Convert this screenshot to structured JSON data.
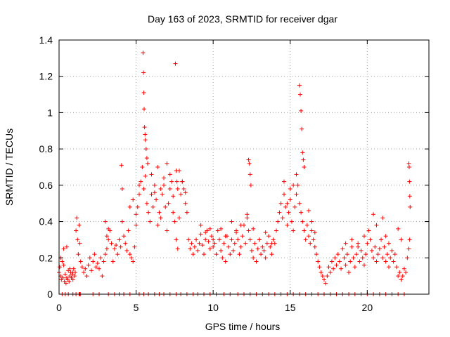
{
  "chart_data": {
    "type": "scatter",
    "title": "Day 163 of 2023, SRMTID for receiver dgar",
    "xlabel": "GPS time / hours",
    "ylabel": "SRMTID / TECUs",
    "xlim": [
      0,
      24
    ],
    "ylim": [
      0,
      1.4
    ],
    "xticks": [
      0,
      5,
      10,
      15,
      20
    ],
    "xtick_labels": [
      "0",
      "5",
      "10",
      "15",
      "20"
    ],
    "yticks": [
      0,
      0.2,
      0.4,
      0.6,
      0.8,
      1.0,
      1.2,
      1.4
    ],
    "ytick_labels": [
      "0",
      "0.2",
      "0.4",
      "0.6",
      "0.8",
      "1",
      "1.2",
      "1.4"
    ],
    "grid": true,
    "marker": "+",
    "series": [
      {
        "name": "SRMTID",
        "color": "#ff0000",
        "x": [
          0.0,
          0.05,
          0.1,
          0.15,
          0.2,
          0.25,
          0.3,
          0.35,
          0.4,
          0.45,
          0.5,
          0.55,
          0.6,
          0.65,
          0.7,
          0.75,
          0.8,
          0.85,
          0.9,
          0.95,
          1.0,
          1.05,
          1.1,
          1.15,
          1.2,
          1.25,
          1.3,
          1.35,
          1.4,
          1.5,
          1.6,
          1.7,
          1.8,
          1.9,
          2.0,
          2.1,
          2.2,
          2.3,
          2.4,
          2.5,
          2.6,
          2.7,
          2.8,
          2.9,
          3.0,
          3.1,
          3.2,
          3.3,
          3.4,
          3.5,
          3.6,
          3.7,
          3.8,
          3.9,
          4.0,
          4.1,
          4.2,
          4.3,
          4.4,
          4.5,
          4.6,
          4.7,
          4.8,
          4.9,
          5.0,
          5.1,
          5.2,
          5.3,
          5.4,
          5.5,
          5.6,
          5.7,
          5.8,
          5.9,
          6.0,
          6.1,
          6.2,
          6.3,
          6.4,
          6.5,
          6.6,
          6.7,
          6.8,
          6.9,
          7.0,
          7.1,
          7.2,
          7.3,
          7.4,
          7.5,
          7.6,
          7.7,
          7.8,
          7.9,
          8.0,
          8.1,
          8.2,
          8.3,
          8.4,
          8.5,
          8.6,
          8.7,
          8.8,
          8.9,
          9.0,
          9.1,
          9.2,
          9.3,
          9.4,
          9.5,
          9.6,
          9.7,
          9.8,
          9.9,
          10.0,
          10.1,
          10.2,
          10.3,
          10.4,
          10.5,
          10.6,
          10.7,
          10.8,
          10.9,
          11.0,
          11.1,
          11.2,
          11.3,
          11.4,
          11.5,
          11.6,
          11.7,
          11.8,
          11.9,
          12.0,
          12.1,
          12.2,
          12.3,
          12.4,
          12.5,
          12.6,
          12.7,
          12.8,
          12.9,
          13.0,
          13.1,
          13.2,
          13.3,
          13.4,
          13.5,
          13.6,
          13.7,
          13.8,
          13.9,
          14.0,
          14.1,
          14.2,
          14.3,
          14.4,
          14.5,
          14.6,
          14.7,
          14.8,
          14.9,
          15.0,
          15.1,
          15.2,
          15.3,
          15.4,
          15.5,
          15.6,
          15.7,
          15.8,
          15.9,
          16.0,
          16.1,
          16.2,
          16.3,
          16.4,
          16.5,
          16.6,
          16.7,
          16.8,
          16.9,
          17.0,
          17.1,
          17.2,
          17.3,
          17.4,
          17.5,
          17.6,
          17.7,
          17.8,
          17.9,
          18.0,
          18.1,
          18.2,
          18.3,
          18.4,
          18.5,
          18.6,
          18.7,
          18.8,
          18.9,
          19.0,
          19.1,
          19.2,
          19.3,
          19.4,
          19.5,
          19.6,
          19.7,
          19.8,
          19.9,
          20.0,
          20.1,
          20.2,
          20.3,
          20.4,
          20.5,
          20.6,
          20.7,
          20.8,
          20.9,
          21.0,
          21.1,
          21.2,
          21.3,
          21.4,
          21.5,
          21.6,
          21.7,
          21.8,
          21.9,
          22.0,
          22.1,
          22.2,
          22.3,
          22.4,
          22.5,
          22.6,
          22.7,
          22.75,
          0.2,
          0.4,
          0.6,
          0.9,
          1.1,
          1.3,
          1.35,
          1.38,
          2.2,
          2.6,
          3.2,
          3.6,
          3.9,
          4.2,
          4.6,
          5.2,
          5.5,
          5.8,
          6.2,
          6.5,
          6.8,
          7.2,
          7.6,
          7.9,
          8.3,
          8.7,
          9.0,
          9.4,
          9.8,
          10.2,
          10.7,
          11.1,
          11.6,
          12.0,
          12.4,
          12.8,
          13.2,
          13.6,
          14.0,
          14.4,
          14.8,
          15.2,
          15.6,
          16.0,
          16.4,
          16.8,
          17.2,
          17.6,
          18.0,
          18.4,
          18.8,
          19.2,
          19.6,
          20.0,
          20.4,
          20.8,
          21.2,
          21.6,
          22.0,
          22.4,
          5.45,
          5.48,
          5.5,
          5.52,
          5.55,
          5.58,
          5.6,
          5.65,
          5.7,
          5.75,
          7.55,
          7.6,
          7.65,
          7.7,
          4.05,
          4.1,
          12.3,
          12.35,
          12.4,
          12.45,
          15.6,
          15.65,
          15.7,
          15.75,
          15.8,
          15.85,
          15.9,
          22.7,
          22.72,
          22.74,
          22.76,
          22.78,
          3.0,
          3.1,
          3.2,
          4.6,
          4.8,
          5.0,
          5.2,
          6.0,
          6.2,
          6.4,
          6.6,
          6.8,
          7.0,
          7.2,
          7.4,
          7.8,
          8.0,
          8.2,
          14.6,
          14.8,
          15.0,
          15.2,
          15.4,
          16.2,
          16.4,
          16.6,
          20.4,
          20.6,
          21.0,
          21.2,
          21.4,
          22.0,
          22.2,
          0.1,
          0.3,
          0.5,
          0.7,
          0.9,
          10.5,
          10.8,
          11.2,
          11.5,
          11.8,
          12.2,
          12.6,
          13.0,
          13.4,
          13.8,
          9.2,
          9.5,
          9.8,
          10.0,
          18.6,
          19.0,
          19.4,
          19.8
        ],
        "y": [
          0.12,
          0.15,
          0.1,
          0.08,
          0.18,
          0.09,
          0.25,
          0.07,
          0.11,
          0.06,
          0.09,
          0.08,
          0.13,
          0.07,
          0.1,
          0.12,
          0.09,
          0.11,
          0.08,
          0.14,
          0.1,
          0.12,
          0.35,
          0.42,
          0.3,
          0.22,
          0.38,
          0.28,
          0.18,
          0.15,
          0.12,
          0.14,
          0.1,
          0.16,
          0.2,
          0.13,
          0.18,
          0.22,
          0.15,
          0.17,
          0.14,
          0.2,
          0.1,
          0.18,
          0.22,
          0.25,
          0.3,
          0.35,
          0.28,
          0.18,
          0.25,
          0.27,
          0.22,
          0.3,
          0.26,
          0.4,
          0.32,
          0.28,
          0.24,
          0.35,
          0.22,
          0.2,
          0.18,
          0.26,
          0.38,
          0.48,
          0.55,
          0.62,
          0.7,
          0.58,
          0.65,
          0.5,
          0.45,
          0.4,
          0.55,
          0.48,
          0.6,
          0.52,
          0.38,
          0.45,
          0.42,
          0.55,
          0.6,
          0.48,
          0.35,
          0.5,
          0.58,
          0.62,
          0.45,
          0.4,
          0.3,
          0.25,
          0.42,
          0.55,
          0.62,
          0.58,
          0.5,
          0.45,
          0.3,
          0.25,
          0.28,
          0.22,
          0.26,
          0.3,
          0.24,
          0.28,
          0.33,
          0.27,
          0.22,
          0.3,
          0.35,
          0.29,
          0.25,
          0.32,
          0.26,
          0.28,
          0.22,
          0.35,
          0.3,
          0.24,
          0.2,
          0.28,
          0.18,
          0.32,
          0.26,
          0.22,
          0.3,
          0.24,
          0.28,
          0.35,
          0.3,
          0.22,
          0.26,
          0.32,
          0.38,
          0.28,
          0.42,
          0.35,
          0.3,
          0.24,
          0.2,
          0.28,
          0.18,
          0.25,
          0.3,
          0.22,
          0.26,
          0.24,
          0.2,
          0.28,
          0.32,
          0.26,
          0.22,
          0.3,
          0.28,
          0.35,
          0.4,
          0.45,
          0.5,
          0.42,
          0.55,
          0.48,
          0.38,
          0.45,
          0.52,
          0.4,
          0.35,
          0.48,
          0.55,
          0.6,
          0.5,
          0.45,
          0.4,
          0.35,
          0.3,
          0.38,
          0.32,
          0.28,
          0.35,
          0.3,
          0.26,
          0.22,
          0.18,
          0.15,
          0.12,
          0.1,
          0.08,
          0.06,
          0.1,
          0.15,
          0.12,
          0.18,
          0.14,
          0.2,
          0.16,
          0.22,
          0.18,
          0.14,
          0.25,
          0.2,
          0.16,
          0.22,
          0.12,
          0.18,
          0.26,
          0.2,
          0.15,
          0.22,
          0.28,
          0.18,
          0.24,
          0.2,
          0.16,
          0.22,
          0.28,
          0.35,
          0.3,
          0.24,
          0.2,
          0.26,
          0.18,
          0.22,
          0.25,
          0.3,
          0.2,
          0.26,
          0.18,
          0.22,
          0.15,
          0.2,
          0.24,
          0.18,
          0.22,
          0.15,
          0.1,
          0.12,
          0.08,
          0.1,
          0.14,
          0.12,
          0.2,
          0.25,
          0.3,
          0.0,
          0.0,
          0.0,
          0.0,
          0.0,
          0.0,
          0.0,
          0.0,
          0.0,
          0.0,
          0.0,
          0.0,
          0.0,
          0.0,
          0.0,
          0.0,
          0.0,
          0.0,
          0.0,
          0.0,
          0.0,
          0.0,
          0.0,
          0.0,
          0.0,
          0.0,
          0.0,
          0.0,
          0.0,
          0.0,
          0.0,
          0.0,
          0.0,
          0.0,
          0.0,
          0.0,
          0.0,
          0.0,
          0.0,
          0.0,
          0.0,
          0.0,
          0.0,
          0.0,
          0.0,
          0.0,
          0.0,
          0.0,
          0.0,
          0.0,
          0.0,
          0.0,
          0.0,
          0.0,
          0.0,
          0.0,
          0.0,
          0.0,
          0.0,
          0.0,
          1.33,
          1.22,
          1.11,
          1.02,
          0.92,
          0.88,
          0.85,
          0.8,
          0.75,
          0.72,
          1.27,
          0.68,
          0.62,
          0.58,
          0.71,
          0.58,
          0.74,
          0.72,
          0.66,
          0.6,
          1.15,
          1.1,
          1.01,
          0.91,
          0.78,
          0.74,
          0.7,
          0.72,
          0.7,
          0.62,
          0.54,
          0.48,
          0.4,
          0.32,
          0.36,
          0.48,
          0.52,
          0.44,
          0.6,
          0.66,
          0.56,
          0.7,
          0.58,
          0.64,
          0.72,
          0.66,
          0.54,
          0.68,
          0.62,
          0.56,
          0.62,
          0.5,
          0.58,
          0.6,
          0.66,
          0.46,
          0.4,
          0.34,
          0.44,
          0.38,
          0.42,
          0.32,
          0.28,
          0.36,
          0.3,
          0.2,
          0.16,
          0.26,
          0.14,
          0.12,
          0.36,
          0.32,
          0.4,
          0.34,
          0.38,
          0.44,
          0.36,
          0.3,
          0.34,
          0.28,
          0.38,
          0.34,
          0.36,
          0.3,
          0.28,
          0.3,
          0.26,
          0.32
        ]
      }
    ]
  }
}
